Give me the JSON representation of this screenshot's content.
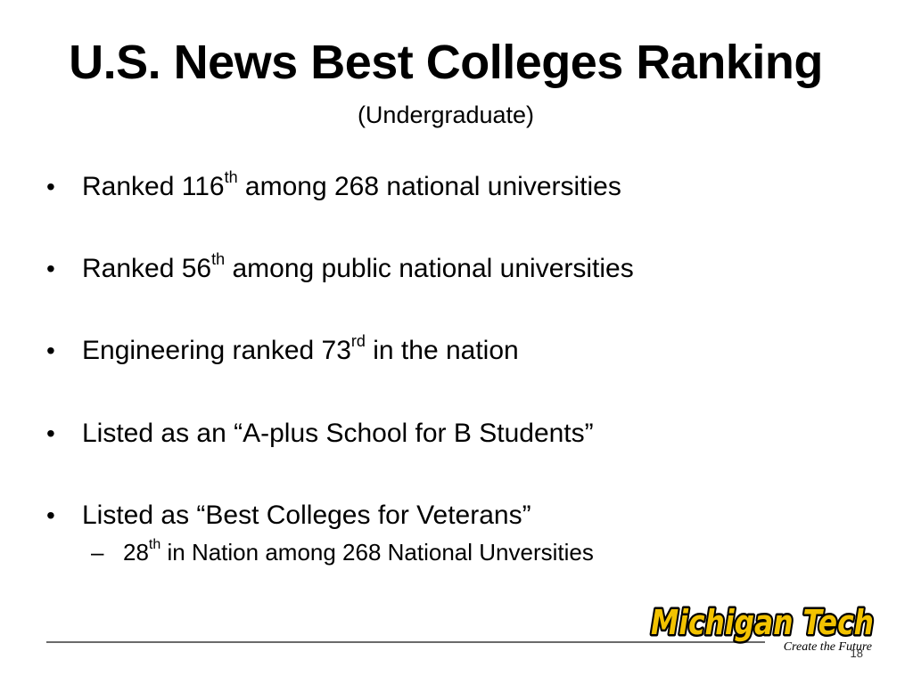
{
  "slide": {
    "title": "U.S. News Best Colleges Ranking",
    "subtitle": "(Undergraduate)",
    "bullet_char": "•",
    "bullets": [
      {
        "pre": "Ranked 116",
        "sup": "th",
        "post": " among 268 national universities"
      },
      {
        "pre": "Ranked 56",
        "sup": "th",
        "post": " among public national universities"
      },
      {
        "pre": "Engineering ranked 73",
        "sup": "rd",
        "post": " in the nation"
      },
      {
        "pre": "Listed as an “A-plus School for B Students”",
        "sup": "",
        "post": ""
      },
      {
        "pre": "Listed as “Best Colleges for Veterans”",
        "sup": "",
        "post": ""
      }
    ],
    "sub_bullet": {
      "dash": "–",
      "pre": "28",
      "sup": "th",
      "post": " in Nation among 268 National Unversities"
    },
    "page_number": "18"
  },
  "logo": {
    "wordmark": "Michigan Tech",
    "tagline": "Create the Future",
    "colors": {
      "gold": "#f2c200",
      "black": "#000000"
    }
  }
}
